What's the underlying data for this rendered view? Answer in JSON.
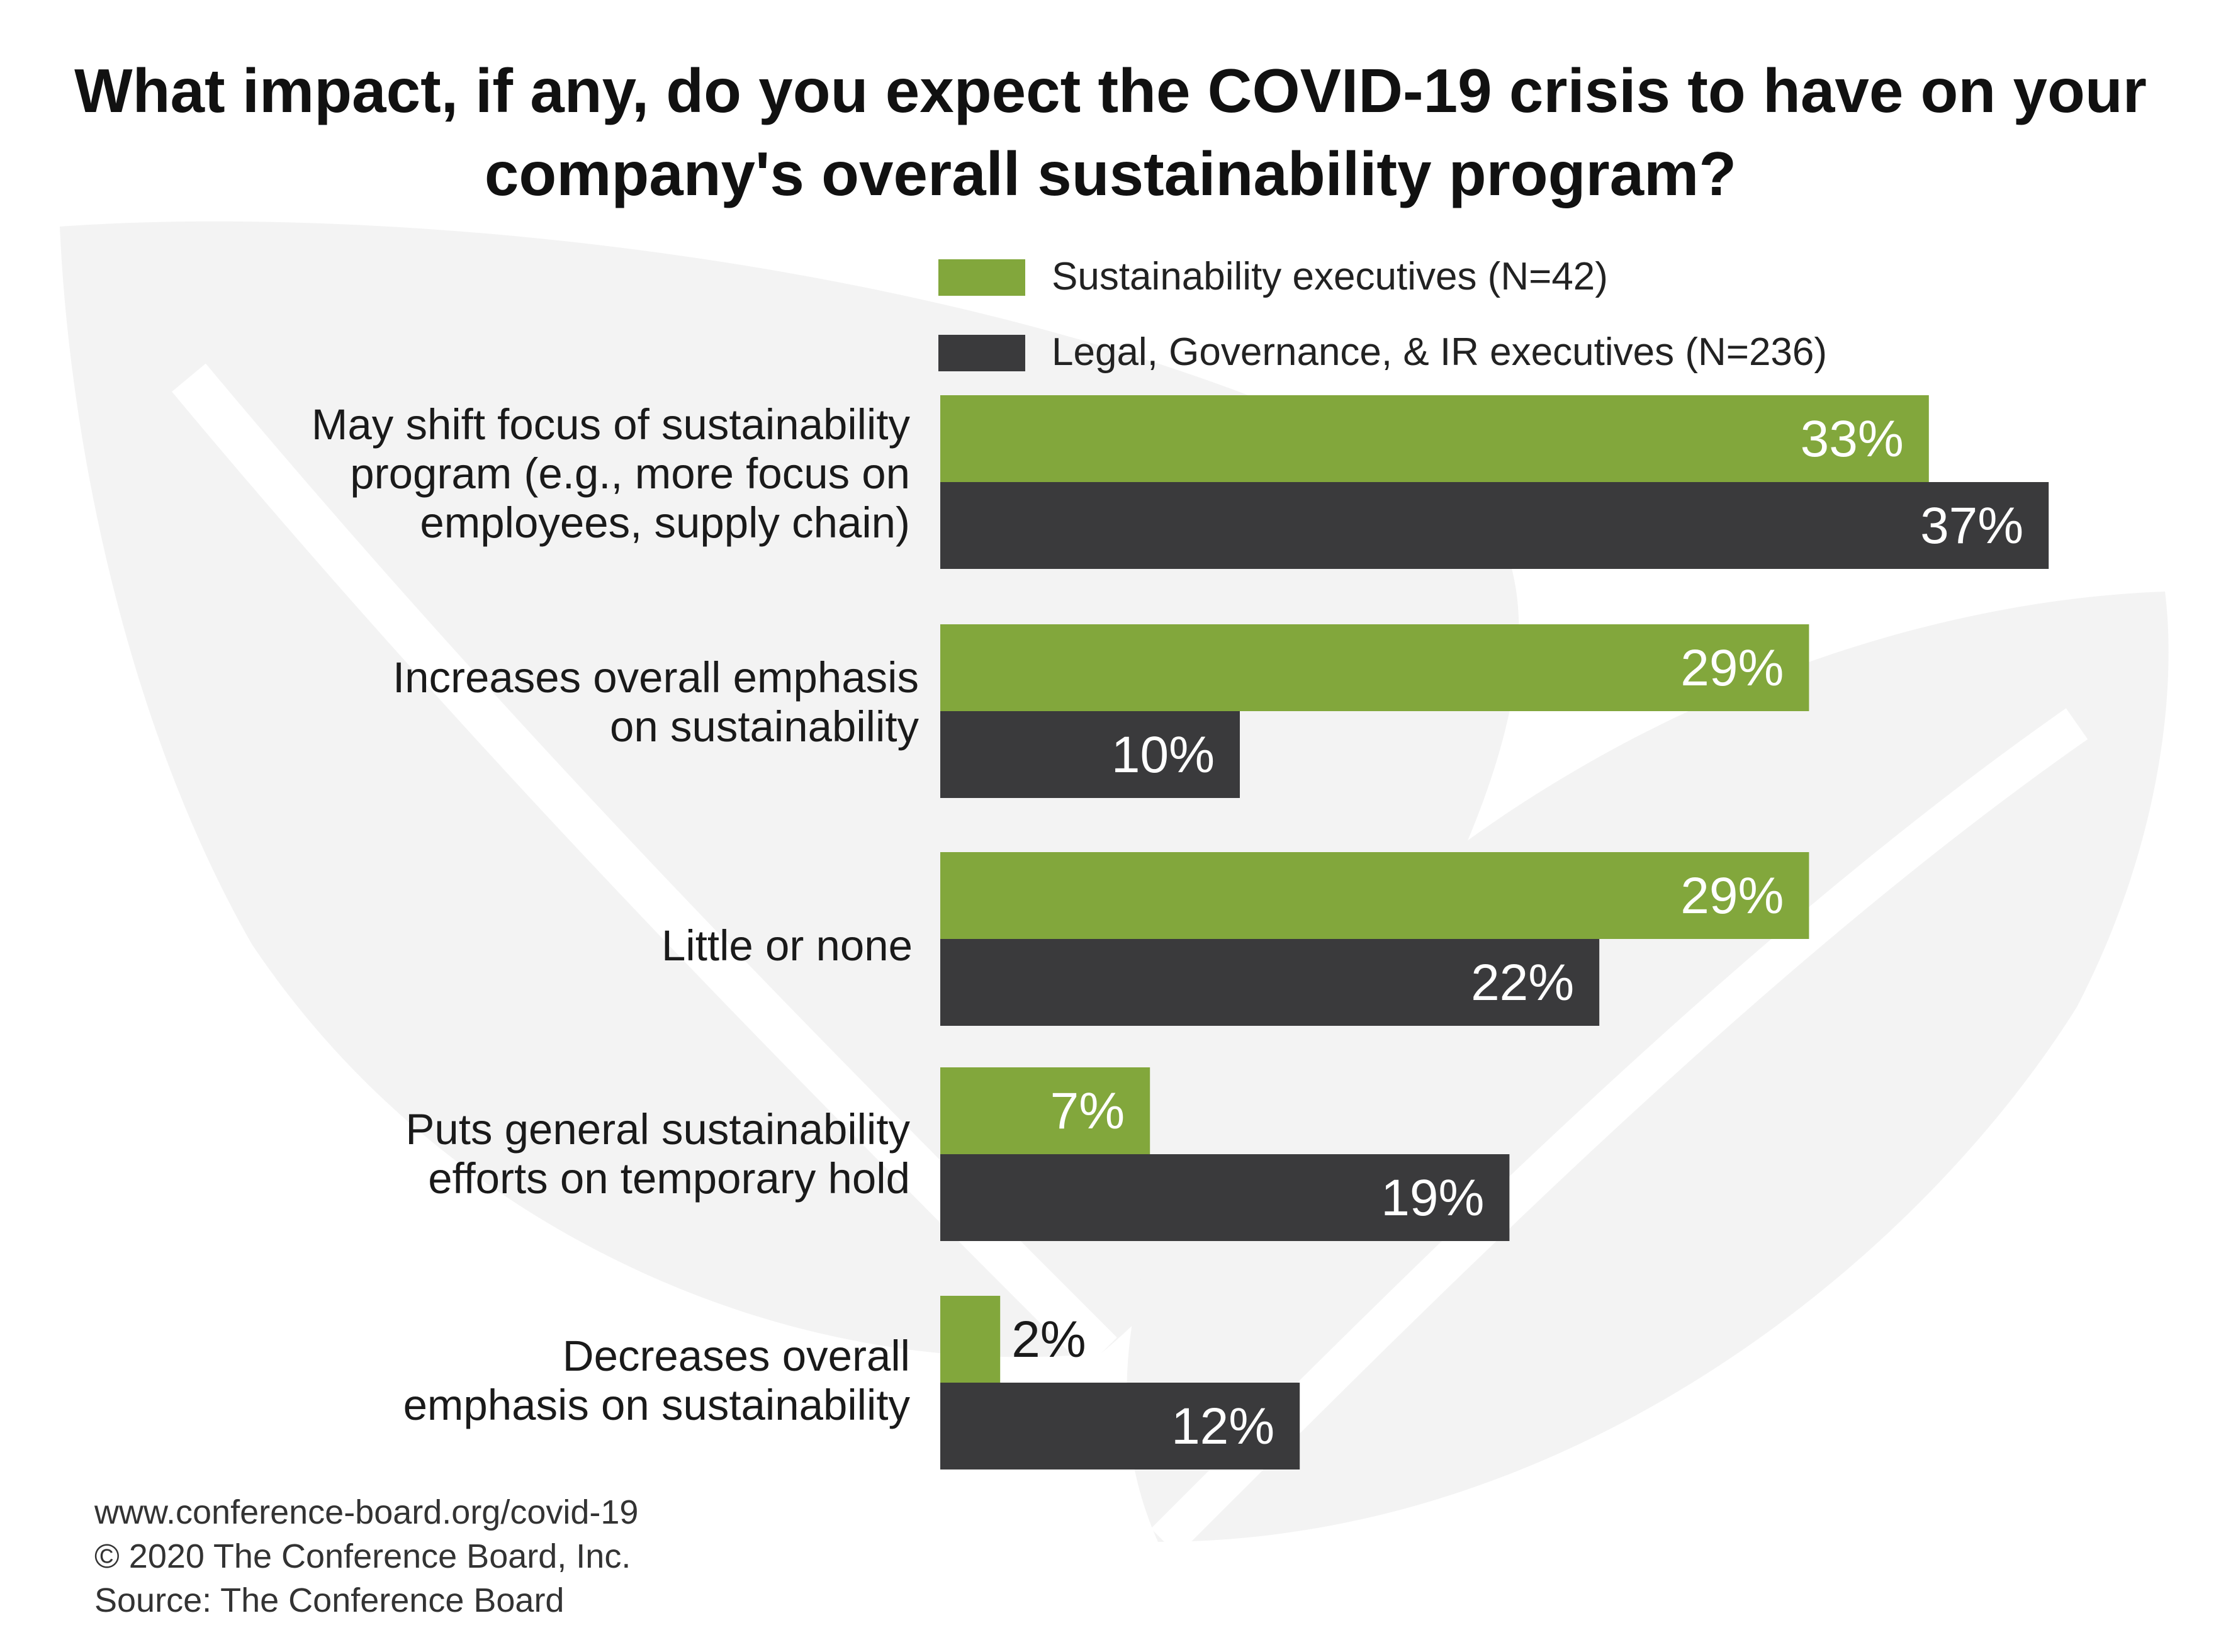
{
  "chart_data": {
    "type": "bar",
    "orientation": "horizontal",
    "title": "What impact, if any, do you expect the COVID-19 crisis to have on your company's overall sustainability program?",
    "categories": [
      "May shift focus of sustainability program (e.g., more focus on employees, supply chain)",
      "Increases overall emphasis on sustainability",
      "Little or none",
      "Puts general sustainability efforts on temporary hold",
      "Decreases overall emphasis on sustainability"
    ],
    "series": [
      {
        "name": "Sustainability executives (N=42)",
        "color": "#82a73c",
        "values": [
          33,
          29,
          29,
          7,
          2
        ],
        "labels": [
          "33%",
          "29%",
          "29%",
          "7%",
          "2%"
        ]
      },
      {
        "name": "Legal, Governance, & IR executives (N=236)",
        "color": "#3a3a3c",
        "values": [
          37,
          10,
          22,
          19,
          12
        ],
        "labels": [
          "37%",
          "10%",
          "22%",
          "19%",
          "12%"
        ]
      }
    ],
    "legend_position": "top",
    "xlim": [
      0,
      40
    ]
  },
  "footer": {
    "url": "www.conference-board.org/covid-19",
    "copyright": "© 2020 The Conference Board, Inc.",
    "source": "Source:  The Conference Board"
  }
}
